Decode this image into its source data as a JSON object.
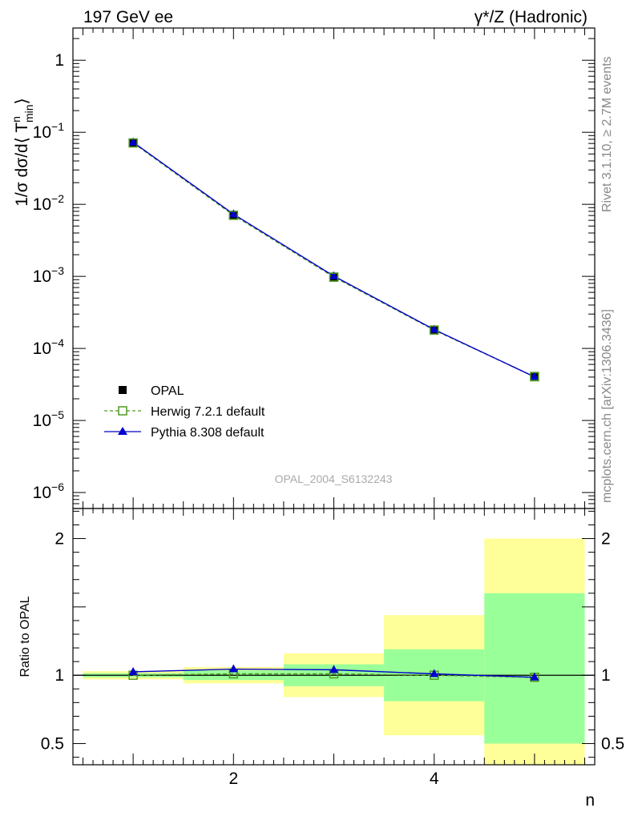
{
  "header": {
    "left_title": "197 GeV ee",
    "right_title": "γ*/Z (Hadronic)"
  },
  "side_labels": {
    "rivet": "Rivet 3.1.10, ≥ 2.7M events",
    "mcplots": "mcplots.cern.ch [arXiv:1306.3436]"
  },
  "watermark": "OPAL_2004_S6132243",
  "colors": {
    "data": "#000000",
    "herwig": "#4f9a1f",
    "pythia": "#0000cc",
    "band_outer": "#ffff99",
    "band_inner": "#99ff99"
  },
  "chart_data": [
    {
      "type": "line",
      "panel": "main",
      "yscale": "log",
      "ylabel": "1/σ dσ/d⟨ T",
      "ylabel_sup": "n",
      "ylabel_sub": "min",
      "ylabel_close": "⟩",
      "xlim": [
        0.4,
        5.6
      ],
      "ylim": [
        6e-07,
        2.8
      ],
      "y_ticks": [
        {
          "value": 1,
          "base": "1",
          "exp": ""
        },
        {
          "value": 0.1,
          "base": "10",
          "exp": "−1"
        },
        {
          "value": 0.01,
          "base": "10",
          "exp": "−2"
        },
        {
          "value": 0.001,
          "base": "10",
          "exp": "−3"
        },
        {
          "value": 0.0001,
          "base": "10",
          "exp": "−4"
        },
        {
          "value": 1e-05,
          "base": "10",
          "exp": "−5"
        },
        {
          "value": 1e-06,
          "base": "10",
          "exp": "−6"
        }
      ],
      "legend_position": "bottom-left",
      "series": [
        {
          "name": "OPAL",
          "style": "data",
          "x": [
            1,
            2,
            3,
            4,
            5
          ],
          "values": [
            0.071,
            0.007,
            0.00097,
            0.00018,
            4.1e-05
          ]
        },
        {
          "name": "Herwig 7.2.1 default",
          "style": "herwig",
          "x": [
            1,
            2,
            3,
            4,
            5
          ],
          "values": [
            0.0712,
            0.00706,
            0.00098,
            0.00018,
            4.04e-05
          ]
        },
        {
          "name": "Pythia 8.308 default",
          "style": "pythia",
          "x": [
            1,
            2,
            3,
            4,
            5
          ],
          "values": [
            0.0728,
            0.00731,
            0.00101,
            0.000183,
            4.03e-05
          ]
        }
      ]
    },
    {
      "type": "line",
      "panel": "ratio",
      "ylabel": "Ratio to OPAL",
      "xlabel": "n",
      "xlim": [
        0.4,
        5.6
      ],
      "ylim": [
        0.345,
        2.22
      ],
      "y_ticks": [
        {
          "value": 0.5,
          "label": "0.5"
        },
        {
          "value": 1,
          "label": "1"
        },
        {
          "value": 2,
          "label": "2"
        }
      ],
      "x_ticks": [
        {
          "value": 2,
          "label": "2"
        },
        {
          "value": 4,
          "label": "4"
        }
      ],
      "bands": [
        {
          "x": [
            0.5,
            1.5
          ],
          "outer": [
            0.97,
            1.03
          ],
          "inner": [
            0.985,
            1.015
          ]
        },
        {
          "x": [
            1.5,
            2.5
          ],
          "outer": [
            0.94,
            1.06
          ],
          "inner": [
            0.965,
            1.035
          ]
        },
        {
          "x": [
            2.5,
            3.5
          ],
          "outer": [
            0.84,
            1.16
          ],
          "inner": [
            0.92,
            1.08
          ]
        },
        {
          "x": [
            3.5,
            4.5
          ],
          "outer": [
            0.56,
            1.44
          ],
          "inner": [
            0.81,
            1.19
          ]
        },
        {
          "x": [
            4.5,
            5.5
          ],
          "outer": [
            0.3,
            2.0
          ],
          "inner": [
            0.5,
            1.6
          ]
        }
      ],
      "series": [
        {
          "name": "Herwig 7.2.1 default",
          "style": "herwig",
          "x": [
            1,
            2,
            3,
            4,
            5
          ],
          "values": [
            1.0,
            1.01,
            1.01,
            1.0,
            0.985
          ]
        },
        {
          "name": "Pythia 8.308 default",
          "style": "pythia",
          "x": [
            1,
            2,
            3,
            4,
            5
          ],
          "values": [
            1.025,
            1.045,
            1.04,
            1.01,
            0.985
          ]
        }
      ]
    }
  ]
}
